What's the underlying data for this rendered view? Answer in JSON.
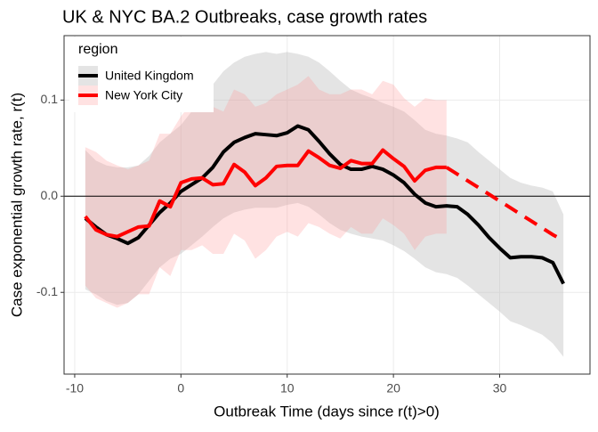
{
  "chart_data": {
    "type": "line",
    "title": "UK & NYC BA.2 Outbreaks, case growth rates",
    "x_label": "Outbreak Time (days since r(t)>0)",
    "y_label": "Case exponential growth rate, r(t)",
    "legend_title": "region",
    "legend_position": "top-left",
    "grid": true,
    "hline": 0,
    "xlim": [
      -11,
      38.5
    ],
    "ylim": [
      -0.185,
      0.167
    ],
    "xticks": [
      -10,
      0,
      10,
      20,
      30
    ],
    "yticks": [
      -0.1,
      {
        "value": 0,
        "label": "0.0"
      },
      0.1
    ],
    "x": [
      -9,
      -8,
      -7,
      -6,
      -5,
      -4,
      -3,
      -2,
      -1,
      0,
      1,
      2,
      3,
      4,
      5,
      6,
      7,
      8,
      9,
      10,
      11,
      12,
      13,
      14,
      15,
      16,
      17,
      18,
      19,
      20,
      21,
      22,
      23,
      24,
      25,
      26,
      27,
      28,
      29,
      30,
      31,
      32,
      33,
      34,
      35,
      36
    ],
    "series": [
      {
        "name": "United Kingdom",
        "color": "#000000",
        "band_color": "rgba(190,190,190,0.42)",
        "values": [
          -0.023,
          -0.032,
          -0.04,
          -0.044,
          -0.049,
          -0.043,
          -0.03,
          -0.017,
          -0.007,
          0.005,
          0.012,
          0.019,
          0.03,
          0.046,
          0.056,
          0.061,
          0.065,
          0.064,
          0.063,
          0.066,
          0.073,
          0.069,
          0.057,
          0.044,
          0.033,
          0.028,
          0.028,
          0.031,
          0.028,
          0.022,
          0.014,
          0.002,
          -0.007,
          -0.011,
          -0.01,
          -0.011,
          -0.019,
          -0.03,
          -0.043,
          -0.054,
          -0.064,
          -0.063,
          -0.063,
          -0.064,
          -0.069,
          -0.091
        ],
        "upper": [
          0.048,
          0.037,
          0.032,
          0.03,
          0.03,
          0.032,
          0.042,
          0.056,
          0.065,
          0.074,
          0.088,
          0.102,
          0.116,
          0.13,
          0.139,
          0.145,
          0.148,
          0.15,
          0.148,
          0.15,
          0.148,
          0.145,
          0.139,
          0.13,
          0.12,
          0.111,
          0.106,
          0.102,
          0.097,
          0.093,
          0.088,
          0.079,
          0.069,
          0.065,
          0.063,
          0.06,
          0.056,
          0.046,
          0.037,
          0.028,
          0.019,
          0.014,
          0.011,
          0.009,
          0.005,
          -0.019
        ],
        "lower": [
          -0.097,
          -0.102,
          -0.109,
          -0.113,
          -0.111,
          -0.102,
          -0.088,
          -0.074,
          -0.065,
          -0.06,
          -0.051,
          -0.042,
          -0.032,
          -0.023,
          -0.017,
          -0.014,
          -0.012,
          -0.012,
          -0.012,
          -0.009,
          -0.007,
          -0.011,
          -0.019,
          -0.028,
          -0.035,
          -0.039,
          -0.042,
          -0.044,
          -0.046,
          -0.051,
          -0.057,
          -0.065,
          -0.074,
          -0.079,
          -0.081,
          -0.085,
          -0.093,
          -0.102,
          -0.111,
          -0.12,
          -0.13,
          -0.134,
          -0.139,
          -0.144,
          -0.153,
          -0.167
        ]
      },
      {
        "name": "New York City",
        "color": "#ff0000",
        "band_color": "rgba(255,140,140,0.25)",
        "values": [
          -0.021,
          -0.035,
          -0.04,
          -0.042,
          -0.037,
          -0.032,
          -0.031,
          -0.005,
          -0.011,
          0.014,
          0.018,
          0.019,
          0.012,
          0.013,
          0.033,
          0.025,
          0.011,
          0.019,
          0.031,
          0.032,
          0.032,
          0.047,
          0.04,
          0.032,
          0.029,
          0.037,
          0.034,
          0.034,
          0.048,
          0.039,
          0.031,
          0.016,
          0.027,
          0.03,
          0.03,
          null,
          null,
          null,
          null,
          null,
          null,
          null,
          null,
          null,
          null,
          null
        ],
        "projection_values": [
          null,
          null,
          null,
          null,
          null,
          null,
          null,
          null,
          null,
          null,
          null,
          null,
          null,
          null,
          null,
          null,
          null,
          null,
          null,
          null,
          null,
          null,
          null,
          null,
          null,
          null,
          null,
          null,
          null,
          null,
          null,
          null,
          null,
          null,
          0.03,
          0.023,
          0.016,
          0.009,
          0.002,
          -0.005,
          -0.012,
          -0.019,
          -0.026,
          -0.033,
          -0.04,
          -0.046
        ],
        "upper": [
          0.051,
          0.046,
          0.037,
          0.032,
          0.028,
          0.032,
          0.037,
          0.065,
          0.065,
          0.083,
          0.097,
          0.088,
          0.093,
          0.088,
          0.111,
          0.106,
          0.093,
          0.097,
          0.106,
          0.111,
          0.116,
          0.125,
          0.111,
          0.106,
          0.106,
          0.111,
          0.111,
          0.106,
          0.12,
          0.116,
          0.102,
          0.093,
          0.102,
          0.1,
          0.1,
          null,
          null,
          null,
          null,
          null,
          null,
          null,
          null,
          null,
          null,
          null
        ],
        "lower": [
          -0.093,
          -0.106,
          -0.111,
          -0.116,
          -0.111,
          -0.102,
          -0.102,
          -0.074,
          -0.083,
          -0.056,
          -0.056,
          -0.051,
          -0.06,
          -0.06,
          -0.039,
          -0.046,
          -0.065,
          -0.056,
          -0.042,
          -0.037,
          -0.042,
          -0.028,
          -0.032,
          -0.039,
          -0.044,
          -0.032,
          -0.039,
          -0.039,
          -0.023,
          -0.03,
          -0.039,
          -0.056,
          -0.042,
          -0.039,
          -0.039,
          null,
          null,
          null,
          null,
          null,
          null,
          null,
          null,
          null,
          null,
          null
        ]
      }
    ]
  }
}
